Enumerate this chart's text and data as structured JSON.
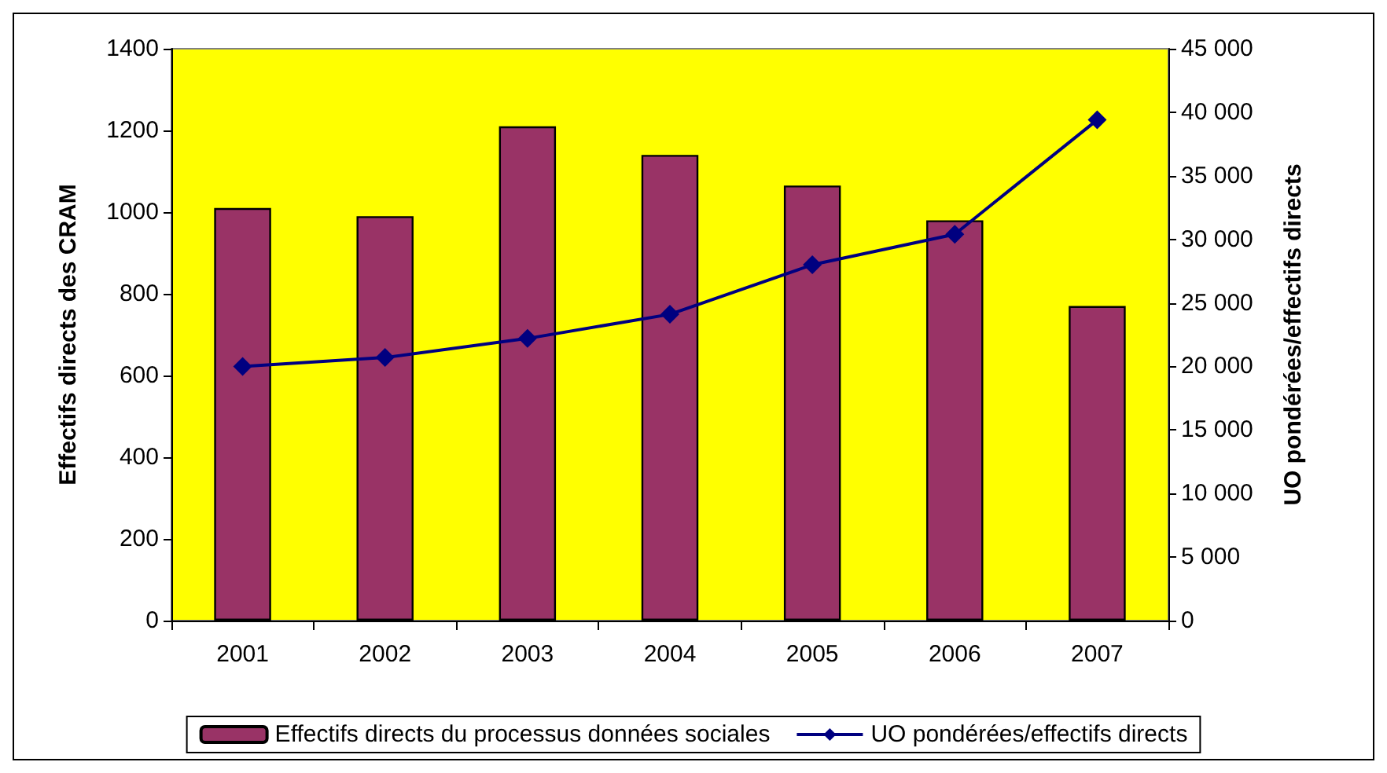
{
  "chart_data": {
    "type": "bar",
    "ylabel": "Effectifs directs des CRAM",
    "y2label": "UO pondérées/effectifs directs",
    "categories": [
      "2001",
      "2002",
      "2003",
      "2004",
      "2005",
      "2006",
      "2007"
    ],
    "series": [
      {
        "name": "Effectifs directs du processus données sociales",
        "color": "#993366",
        "values": [
          1010,
          990,
          1210,
          1140,
          1065,
          980,
          770
        ]
      },
      {
        "name": "UO pondérées/effectifs directs",
        "type": "line",
        "axis": "y2",
        "color": "#000080",
        "values": [
          20000,
          20700,
          22200,
          24100,
          28000,
          30400,
          39400
        ]
      }
    ],
    "ylim": [
      0,
      1400
    ],
    "yticks": [
      0,
      200,
      400,
      600,
      800,
      1000,
      1200,
      1400
    ],
    "y2lim": [
      0,
      45000
    ],
    "y2ticks": [
      0,
      {
        "value": 5000,
        "label": "5 000"
      },
      {
        "value": 10000,
        "label": "10 000"
      },
      {
        "value": 15000,
        "label": "15 000"
      },
      {
        "value": 20000,
        "label": "20 000"
      },
      {
        "value": 25000,
        "label": "25 000"
      },
      {
        "value": 30000,
        "label": "30 000"
      },
      {
        "value": 35000,
        "label": "35 000"
      },
      {
        "value": 40000,
        "label": "40 000"
      },
      {
        "value": 45000,
        "label": "45 000"
      }
    ],
    "grid": false,
    "legend": "bottom",
    "marker": "diamond",
    "line_style": "solid"
  }
}
